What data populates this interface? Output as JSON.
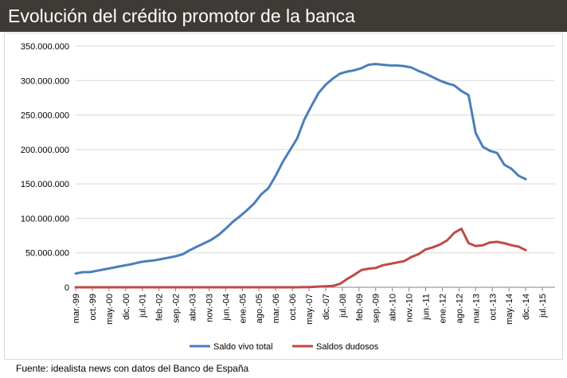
{
  "header": {
    "title": "Evolución del crédito promotor de la banca"
  },
  "footer": {
    "source": "Fuente: idealista news con datos del Banco de España"
  },
  "colors": {
    "title_bar": "#3e3b36",
    "series_total": "#4a7ebb",
    "series_dudosos": "#be4b48",
    "grid": "#d9d9d9"
  },
  "chart_data": {
    "type": "line",
    "title": "",
    "xlabel": "",
    "ylabel": "",
    "ylim": [
      0,
      350000000
    ],
    "yticks": [
      0,
      50000000,
      100000000,
      150000000,
      200000000,
      250000000,
      300000000,
      350000000
    ],
    "ytick_labels": [
      "0",
      "50.000.000",
      "100.000.000",
      "150.000.000",
      "200.000.000",
      "250.000.000",
      "300.000.000",
      "350.000.000"
    ],
    "grid": true,
    "legend_position": "bottom",
    "x_tick_labels": [
      "mar.-99",
      "oct.-99",
      "may.-00",
      "dic.-00",
      "jul.-01",
      "feb.-02",
      "sep.-02",
      "abr.-03",
      "nov.-03",
      "jun.-04",
      "ene.-05",
      "ago.-05",
      "mar.-06",
      "oct.-06",
      "may.-07",
      "dic.-07",
      "jul.-08",
      "feb.-09",
      "sep.-09",
      "abr.-10",
      "nov.-10",
      "jun.-11",
      "ene.-12",
      "ago.-12",
      "mar.-13",
      "oct.-13",
      "may.-14",
      "dic.-14",
      "jul.-15"
    ],
    "series": [
      {
        "name": "Saldo vivo total",
        "color": "#4a7ebb",
        "x": [
          "1999-03",
          "1999-06",
          "1999-09",
          "1999-12",
          "2000-03",
          "2000-06",
          "2000-09",
          "2000-12",
          "2001-03",
          "2001-06",
          "2001-09",
          "2001-12",
          "2002-03",
          "2002-06",
          "2002-09",
          "2002-12",
          "2003-03",
          "2003-06",
          "2003-09",
          "2003-12",
          "2004-03",
          "2004-06",
          "2004-09",
          "2004-12",
          "2005-03",
          "2005-06",
          "2005-09",
          "2005-12",
          "2006-03",
          "2006-06",
          "2006-09",
          "2006-12",
          "2007-03",
          "2007-06",
          "2007-09",
          "2007-12",
          "2008-03",
          "2008-06",
          "2008-09",
          "2008-12",
          "2009-03",
          "2009-06",
          "2009-09",
          "2009-12",
          "2010-03",
          "2010-06",
          "2010-09",
          "2010-12",
          "2011-03",
          "2011-06",
          "2011-09",
          "2011-12",
          "2012-03",
          "2012-06",
          "2012-09",
          "2012-12",
          "2013-03",
          "2013-06",
          "2013-09",
          "2013-12",
          "2014-03",
          "2014-06",
          "2014-09",
          "2014-12"
        ],
        "values": [
          20000000,
          22000000,
          22000000,
          24000000,
          26000000,
          28000000,
          30000000,
          32000000,
          34000000,
          36500000,
          38000000,
          39000000,
          41000000,
          43000000,
          45000000,
          48000000,
          54000000,
          59000000,
          64000000,
          69000000,
          76000000,
          85000000,
          95000000,
          103000000,
          112000000,
          122000000,
          135000000,
          144000000,
          162000000,
          182000000,
          199000000,
          216000000,
          243000000,
          263000000,
          282000000,
          294000000,
          303000000,
          310000000,
          313000000,
          315000000,
          318000000,
          323000000,
          324000000,
          323000000,
          322000000,
          322000000,
          321000000,
          319000000,
          314000000,
          310000000,
          305000000,
          300000000,
          296000000,
          293000000,
          285000000,
          279000000,
          224000000,
          204000000,
          198000000,
          195000000,
          178000000,
          172000000,
          162000000,
          157000000
        ]
      },
      {
        "name": "Saldos dudosos",
        "color": "#be4b48",
        "x": [
          "1999-03",
          "2000-03",
          "2001-03",
          "2002-03",
          "2003-03",
          "2004-03",
          "2005-03",
          "2006-03",
          "2006-12",
          "2007-06",
          "2007-09",
          "2007-12",
          "2008-03",
          "2008-06",
          "2008-09",
          "2008-12",
          "2009-03",
          "2009-06",
          "2009-09",
          "2009-12",
          "2010-03",
          "2010-06",
          "2010-09",
          "2010-12",
          "2011-03",
          "2011-06",
          "2011-09",
          "2011-12",
          "2012-03",
          "2012-06",
          "2012-09",
          "2012-12",
          "2013-03",
          "2013-06",
          "2013-09",
          "2013-12",
          "2014-03",
          "2014-06",
          "2014-09",
          "2014-12"
        ],
        "values": [
          0,
          0,
          0,
          0,
          0,
          0,
          0,
          0,
          0,
          500000,
          1000000,
          1500000,
          2000000,
          5000000,
          12000000,
          18000000,
          25000000,
          27000000,
          28000000,
          32000000,
          34000000,
          36000000,
          38000000,
          44000000,
          48000000,
          55000000,
          58000000,
          62000000,
          68000000,
          79000000,
          85000000,
          64000000,
          60000000,
          61000000,
          65000000,
          66000000,
          64000000,
          61000000,
          59000000,
          54000000
        ]
      }
    ]
  }
}
